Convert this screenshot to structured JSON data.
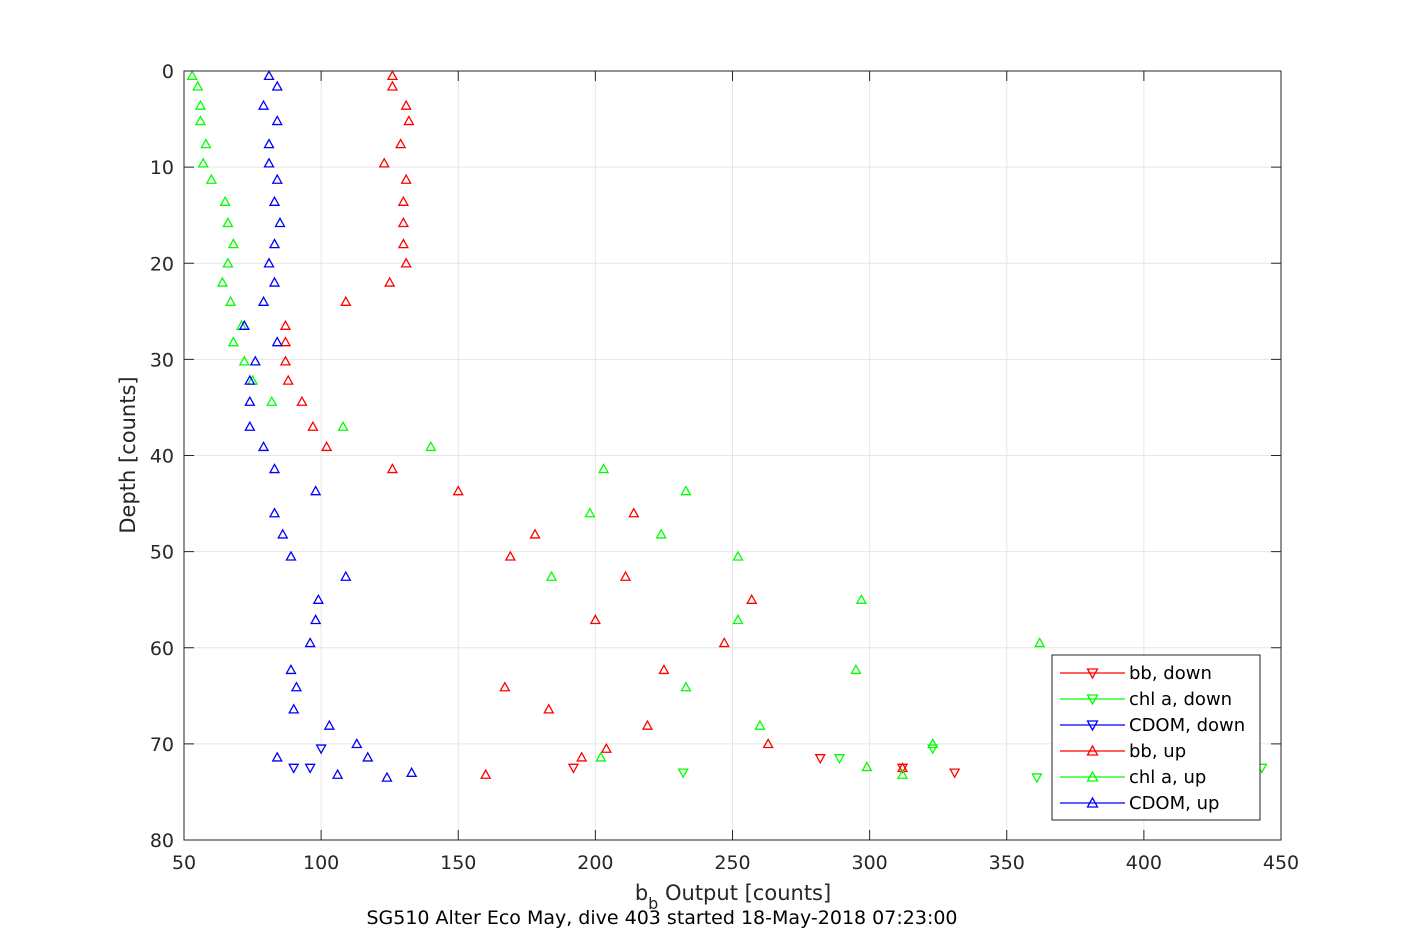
{
  "chart_data": {
    "type": "scatter",
    "xlabel_main": "b",
    "xlabel_sub": "b",
    "xlabel_rest": " Output [counts]",
    "ylabel": "Depth [counts]",
    "caption": "SG510 Alter Eco May, dive 403 started 18-May-2018 07:23:00",
    "xlim": [
      50,
      450
    ],
    "ylim": [
      0,
      80
    ],
    "y_reversed": true,
    "grid": true,
    "legend_position": "bottom-right",
    "x_ticks": [
      "50",
      "100",
      "150",
      "200",
      "250",
      "300",
      "350",
      "400",
      "450"
    ],
    "y_ticks": [
      "0",
      "10",
      "20",
      "30",
      "40",
      "50",
      "60",
      "70",
      "80"
    ],
    "series": [
      {
        "name": "bb, down",
        "color": "#ff0000",
        "marker": "triangle-down",
        "points": [
          [
            192,
            72.5
          ],
          [
            282,
            71.5
          ],
          [
            312,
            72.5
          ],
          [
            331,
            73.0
          ]
        ]
      },
      {
        "name": "chl a, down",
        "color": "#00ff00",
        "marker": "triangle-down",
        "points": [
          [
            232,
            73.0
          ],
          [
            289,
            71.5
          ],
          [
            323,
            70.5
          ],
          [
            361,
            73.5
          ],
          [
            443,
            72.5
          ]
        ]
      },
      {
        "name": "CDOM, down",
        "color": "#0000ff",
        "marker": "triangle-down",
        "points": [
          [
            90,
            72.5
          ],
          [
            96,
            72.5
          ],
          [
            100,
            70.5
          ]
        ]
      },
      {
        "name": "bb, up",
        "color": "#ff0000",
        "marker": "triangle-up",
        "points": [
          [
            126,
            0.5
          ],
          [
            126,
            1.6
          ],
          [
            131,
            3.6
          ],
          [
            132,
            5.2
          ],
          [
            129,
            7.6
          ],
          [
            123,
            9.6
          ],
          [
            131,
            11.3
          ],
          [
            130,
            13.6
          ],
          [
            130,
            15.8
          ],
          [
            130,
            18.0
          ],
          [
            131,
            20.0
          ],
          [
            125,
            22.0
          ],
          [
            109,
            24.0
          ],
          [
            87,
            26.5
          ],
          [
            87,
            28.2
          ],
          [
            87,
            30.2
          ],
          [
            88,
            32.2
          ],
          [
            93,
            34.4
          ],
          [
            97,
            37.0
          ],
          [
            102,
            39.1
          ],
          [
            126,
            41.4
          ],
          [
            150,
            43.7
          ],
          [
            214,
            46.0
          ],
          [
            178,
            48.2
          ],
          [
            169,
            50.5
          ],
          [
            211,
            52.6
          ],
          [
            257,
            55.0
          ],
          [
            200,
            57.1
          ],
          [
            247,
            59.5
          ],
          [
            225,
            62.3
          ],
          [
            167,
            64.1
          ],
          [
            183,
            66.4
          ],
          [
            219,
            68.1
          ],
          [
            204,
            70.5
          ],
          [
            263,
            70.0
          ],
          [
            195,
            71.4
          ],
          [
            160,
            73.2
          ],
          [
            312,
            72.5
          ]
        ]
      },
      {
        "name": "chl a, up",
        "color": "#00ff00",
        "marker": "triangle-up",
        "points": [
          [
            53,
            0.5
          ],
          [
            55,
            1.6
          ],
          [
            56,
            3.6
          ],
          [
            56,
            5.2
          ],
          [
            58,
            7.6
          ],
          [
            57,
            9.6
          ],
          [
            60,
            11.3
          ],
          [
            65,
            13.6
          ],
          [
            66,
            15.8
          ],
          [
            68,
            18.0
          ],
          [
            66,
            20.0
          ],
          [
            64,
            22.0
          ],
          [
            67,
            24.0
          ],
          [
            71,
            26.5
          ],
          [
            68,
            28.2
          ],
          [
            72,
            30.2
          ],
          [
            75,
            32.2
          ],
          [
            82,
            34.4
          ],
          [
            108,
            37.0
          ],
          [
            140,
            39.1
          ],
          [
            203,
            41.4
          ],
          [
            233,
            43.7
          ],
          [
            198,
            46.0
          ],
          [
            224,
            48.2
          ],
          [
            252,
            50.5
          ],
          [
            184,
            52.6
          ],
          [
            297,
            55.0
          ],
          [
            252,
            57.1
          ],
          [
            362,
            59.5
          ],
          [
            295,
            62.3
          ],
          [
            233,
            64.1
          ],
          [
            260,
            68.1
          ],
          [
            202,
            71.4
          ],
          [
            323,
            70.0
          ],
          [
            299,
            72.4
          ],
          [
            312,
            73.2
          ]
        ]
      },
      {
        "name": "CDOM, up",
        "color": "#0000ff",
        "marker": "triangle-up",
        "points": [
          [
            81,
            0.5
          ],
          [
            84,
            1.6
          ],
          [
            79,
            3.6
          ],
          [
            84,
            5.2
          ],
          [
            81,
            7.6
          ],
          [
            81,
            9.6
          ],
          [
            84,
            11.3
          ],
          [
            83,
            13.6
          ],
          [
            85,
            15.8
          ],
          [
            83,
            18.0
          ],
          [
            81,
            20.0
          ],
          [
            83,
            22.0
          ],
          [
            79,
            24.0
          ],
          [
            72,
            26.5
          ],
          [
            84,
            28.2
          ],
          [
            76,
            30.2
          ],
          [
            74,
            32.2
          ],
          [
            74,
            34.4
          ],
          [
            74,
            37.0
          ],
          [
            79,
            39.1
          ],
          [
            83,
            41.4
          ],
          [
            98,
            43.7
          ],
          [
            83,
            46.0
          ],
          [
            86,
            48.2
          ],
          [
            89,
            50.5
          ],
          [
            109,
            52.6
          ],
          [
            99,
            55.0
          ],
          [
            98,
            57.1
          ],
          [
            96,
            59.5
          ],
          [
            89,
            62.3
          ],
          [
            91,
            64.1
          ],
          [
            90,
            66.4
          ],
          [
            103,
            68.1
          ],
          [
            113,
            70.0
          ],
          [
            117,
            71.4
          ],
          [
            84,
            71.4
          ],
          [
            106,
            73.2
          ],
          [
            124,
            73.5
          ],
          [
            133,
            73.0
          ]
        ]
      }
    ]
  }
}
